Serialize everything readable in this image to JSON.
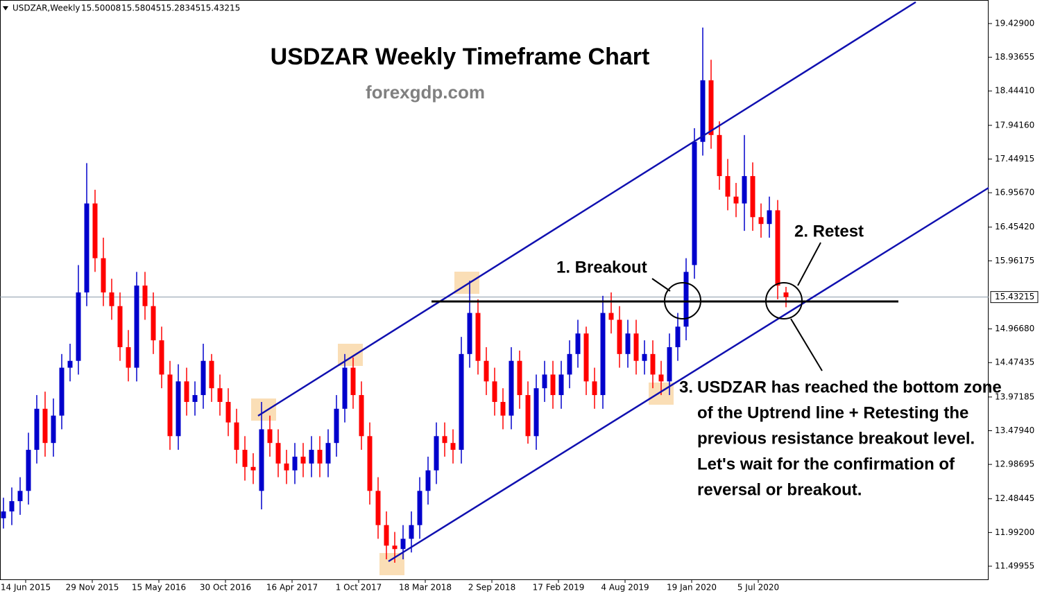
{
  "chart_data": {
    "type": "candlestick",
    "title": "USDZAR Weekly Timeframe Chart",
    "subtitle": "forexgdp.com",
    "symbol": "USDZAR,Weekly",
    "ohlc": [
      15.50008,
      15.58045,
      15.28345,
      15.43215
    ],
    "current_price": 15.43215,
    "up_color": "#0000cc",
    "down_color": "#ff0000",
    "annotations": [
      "1. Breakout",
      "2. Retest",
      "3."
    ],
    "note": [
      "USDZAR has reached the bottom zone",
      "of the Uptrend line + Retesting the",
      "previous resistance breakout level.",
      "Let's wait for the confirmation of",
      "reversal or breakout."
    ],
    "xlim": [
      -9.25,
      347
    ],
    "xticks": [
      {
        "value": 0,
        "label": "14 Jun 2015"
      },
      {
        "value": 24,
        "label": "29 Nov 2015"
      },
      {
        "value": 48,
        "label": "15 May 2016"
      },
      {
        "value": 72,
        "label": "30 Oct 2016"
      },
      {
        "value": 96,
        "label": "16 Apr 2017"
      },
      {
        "value": 120,
        "label": "1 Oct 2017"
      },
      {
        "value": 144,
        "label": "18 Mar 2018"
      },
      {
        "value": 168,
        "label": "2 Sep 2018"
      },
      {
        "value": 192,
        "label": "17 Feb 2019"
      },
      {
        "value": 216,
        "label": "4 Aug 2019"
      },
      {
        "value": 240,
        "label": "19 Jan 2020"
      },
      {
        "value": 264,
        "label": "5 Jul 2020"
      }
    ],
    "ylim": [
      11.307,
      19.773
    ],
    "yticks": [
      {
        "value": 19.429,
        "label": "19.42900"
      },
      18.93655,
      {
        "value": 18.4441,
        "label": "18.44410"
      },
      {
        "value": 17.9416,
        "label": "17.94160"
      },
      17.44915,
      {
        "value": 16.9567,
        "label": "16.95670"
      },
      {
        "value": 16.4542,
        "label": "16.45420"
      },
      15.96175,
      {
        "value": 14.9668,
        "label": "14.96680"
      },
      14.47435,
      13.97185,
      {
        "value": 13.4794,
        "label": "13.47940"
      },
      12.98695,
      12.48445,
      {
        "value": 11.992,
        "label": "11.99200"
      },
      11.49955
    ],
    "candles": {
      "x": [
        -8,
        -5,
        -2,
        1,
        4,
        7,
        10,
        13,
        16,
        19,
        22,
        25,
        28,
        31,
        34,
        37,
        40,
        43,
        46,
        49,
        52,
        55,
        58,
        61,
        64,
        67,
        70,
        73,
        76,
        79,
        82,
        85,
        88,
        91,
        94,
        97,
        100,
        103,
        106,
        109,
        112,
        115,
        118,
        121,
        124,
        127,
        130,
        133,
        136,
        139,
        142,
        145,
        148,
        151,
        154,
        157,
        160,
        163,
        166,
        169,
        172,
        175,
        178,
        181,
        184,
        187,
        190,
        193,
        196,
        199,
        202,
        205,
        208,
        211,
        214,
        217,
        220,
        223,
        226,
        229,
        232,
        235,
        238,
        241,
        244,
        247,
        250,
        253,
        256,
        259,
        262,
        265,
        268,
        271,
        274
      ],
      "open": [
        12.2,
        12.3,
        12.45,
        12.6,
        13.2,
        13.8,
        13.3,
        13.7,
        14.4,
        14.5,
        15.5,
        16.8,
        16.0,
        15.5,
        15.3,
        14.7,
        14.4,
        15.6,
        15.3,
        14.8,
        14.3,
        13.4,
        14.2,
        13.9,
        14.0,
        14.5,
        14.1,
        13.9,
        13.6,
        13.2,
        12.95,
        12.6,
        13.5,
        13.3,
        13.0,
        12.9,
        13.1,
        13.0,
        13.2,
        13.0,
        13.3,
        13.8,
        14.4,
        14.0,
        13.4,
        12.6,
        12.1,
        11.8,
        11.75,
        11.9,
        12.1,
        12.6,
        12.9,
        13.4,
        13.3,
        13.2,
        14.6,
        15.2,
        14.5,
        14.2,
        13.9,
        13.7,
        14.5,
        14.0,
        13.4,
        14.1,
        14.3,
        14.0,
        14.3,
        14.6,
        14.9,
        14.2,
        14.0,
        15.2,
        15.1,
        14.6,
        14.9,
        14.5,
        14.6,
        14.3,
        14.2,
        14.7,
        15.0,
        15.9,
        17.7,
        18.6,
        17.8,
        17.2,
        16.9,
        16.8,
        17.2,
        16.6,
        16.5,
        16.7,
        15.50008
      ],
      "high": [
        12.5,
        12.65,
        12.8,
        13.45,
        14.0,
        14.05,
        13.95,
        14.6,
        14.75,
        15.9,
        17.39,
        17.0,
        16.3,
        15.7,
        15.5,
        14.95,
        15.8,
        15.8,
        15.5,
        15.0,
        14.5,
        14.45,
        14.4,
        14.2,
        14.75,
        14.6,
        14.3,
        14.1,
        13.8,
        13.4,
        13.15,
        13.9,
        13.7,
        13.5,
        13.2,
        13.3,
        13.3,
        13.4,
        13.4,
        13.5,
        14.0,
        14.6,
        14.55,
        14.2,
        13.6,
        12.8,
        12.3,
        12.0,
        12.1,
        12.3,
        12.8,
        13.1,
        13.6,
        13.6,
        13.5,
        14.85,
        15.67,
        15.4,
        14.7,
        14.4,
        14.1,
        14.7,
        14.65,
        14.2,
        14.3,
        14.5,
        14.5,
        14.5,
        14.8,
        15.1,
        15.0,
        14.4,
        15.45,
        15.5,
        15.3,
        15.1,
        15.1,
        14.8,
        14.8,
        14.5,
        14.9,
        15.2,
        16.0,
        17.9,
        19.37,
        18.9,
        18.0,
        17.45,
        17.1,
        17.8,
        17.4,
        16.8,
        16.9,
        16.85,
        15.58045
      ],
      "low": [
        12.05,
        12.1,
        12.25,
        12.4,
        13.0,
        13.1,
        13.1,
        13.5,
        14.2,
        14.3,
        15.3,
        15.8,
        15.3,
        15.1,
        14.5,
        14.2,
        14.2,
        15.1,
        14.6,
        14.1,
        13.2,
        13.2,
        13.7,
        13.7,
        13.8,
        13.9,
        13.7,
        13.4,
        13.0,
        12.75,
        12.7,
        12.33,
        13.1,
        12.8,
        12.7,
        12.7,
        12.8,
        12.8,
        12.8,
        12.8,
        13.1,
        13.6,
        13.8,
        13.2,
        12.4,
        11.9,
        11.6,
        11.55,
        11.6,
        11.7,
        11.9,
        12.4,
        12.7,
        13.1,
        13.0,
        13.0,
        14.4,
        14.3,
        14.0,
        13.7,
        13.5,
        13.5,
        13.8,
        13.29,
        13.2,
        13.9,
        13.8,
        13.8,
        14.1,
        14.4,
        14.0,
        13.8,
        13.8,
        14.9,
        14.4,
        14.4,
        14.3,
        14.3,
        14.1,
        14.0,
        14.0,
        14.5,
        14.8,
        15.7,
        17.5,
        17.6,
        17.0,
        16.7,
        16.6,
        16.4,
        16.4,
        16.3,
        16.3,
        15.4,
        15.28345
      ],
      "close": [
        12.3,
        12.45,
        12.6,
        13.2,
        13.8,
        13.3,
        13.7,
        14.4,
        14.5,
        15.5,
        16.8,
        16.0,
        15.5,
        15.3,
        14.7,
        14.4,
        15.6,
        15.3,
        14.8,
        14.3,
        13.4,
        14.2,
        13.9,
        14.0,
        14.5,
        14.1,
        13.9,
        13.6,
        13.2,
        12.95,
        12.9,
        13.5,
        13.3,
        13.0,
        12.9,
        13.1,
        13.0,
        13.2,
        13.0,
        13.3,
        13.8,
        14.4,
        14.0,
        13.4,
        12.6,
        12.1,
        11.8,
        11.75,
        11.9,
        12.1,
        12.6,
        12.9,
        13.4,
        13.3,
        13.2,
        14.6,
        15.2,
        14.5,
        14.2,
        13.9,
        13.7,
        14.5,
        14.0,
        13.4,
        14.1,
        14.3,
        14.0,
        14.3,
        14.6,
        14.9,
        14.2,
        14.0,
        15.2,
        15.1,
        14.6,
        14.9,
        14.5,
        14.6,
        14.3,
        14.2,
        14.7,
        15.0,
        15.8,
        17.7,
        18.6,
        17.8,
        17.2,
        16.9,
        16.8,
        17.2,
        16.6,
        16.5,
        16.7,
        15.6,
        15.43215
      ]
    }
  }
}
